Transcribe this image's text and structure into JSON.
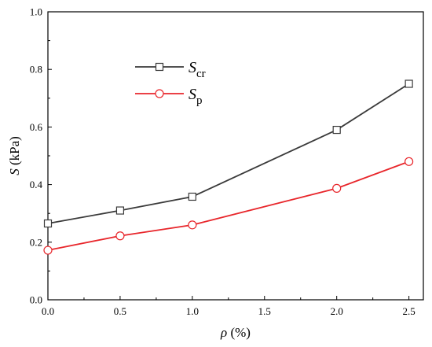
{
  "chart_data": {
    "type": "line",
    "title": "",
    "xlabel": {
      "symbol": "ρ",
      "unit": "(%)"
    },
    "ylabel": {
      "symbol": "S",
      "unit": "(kPa)"
    },
    "xlim": [
      0.0,
      2.6
    ],
    "ylim": [
      0.0,
      1.0
    ],
    "xticks": [
      0.0,
      0.5,
      1.0,
      1.5,
      2.0,
      2.5
    ],
    "xtick_labels": [
      "0.0",
      "0.5",
      "1.0",
      "1.5",
      "2.0",
      "2.5"
    ],
    "yticks": [
      0.0,
      0.2,
      0.4,
      0.6,
      0.8,
      1.0
    ],
    "ytick_labels": [
      "0.0",
      "0.2",
      "0.4",
      "0.6",
      "0.8",
      "1.0"
    ],
    "grid": false,
    "legend_position": "upper-left",
    "series": [
      {
        "name_main": "S",
        "name_sub": "cr",
        "color": "#3a3a3a",
        "marker": "square",
        "x": [
          0.0,
          0.5,
          1.0,
          2.0,
          2.5
        ],
        "y": [
          0.265,
          0.31,
          0.358,
          0.59,
          0.75
        ]
      },
      {
        "name_main": "S",
        "name_sub": "p",
        "color": "#e8262b",
        "marker": "circle",
        "x": [
          0.0,
          0.5,
          1.0,
          2.0,
          2.5
        ],
        "y": [
          0.172,
          0.222,
          0.26,
          0.387,
          0.48
        ]
      }
    ]
  }
}
